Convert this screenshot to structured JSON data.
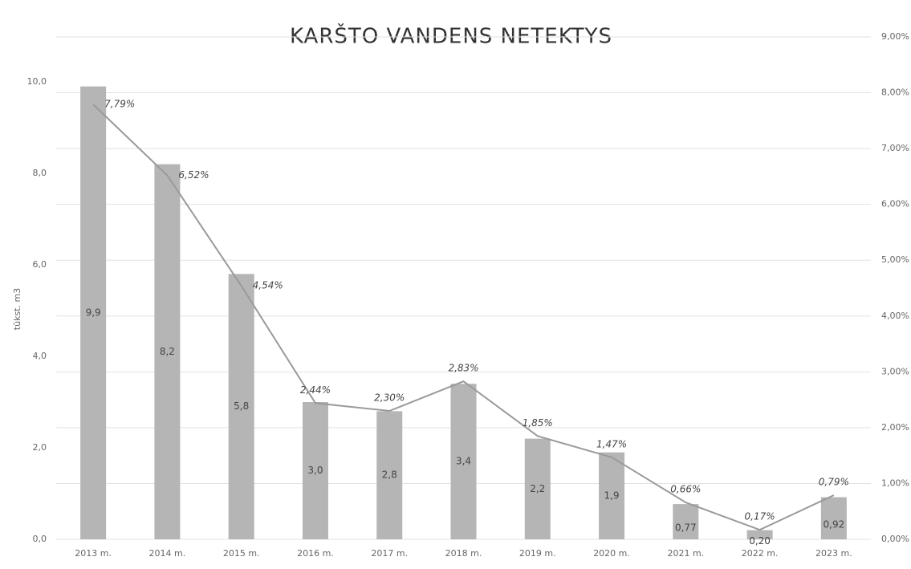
{
  "chart_data": {
    "type": "bar",
    "title": "KARŠTO VANDENS NETEKTYS",
    "y_label": "tūkst. m3",
    "categories": [
      "2013 m.",
      "2014 m.",
      "2015 m.",
      "2016 m.",
      "2017 m.",
      "2018 m.",
      "2019 m.",
      "2020 m.",
      "2021 m.",
      "2022 m.",
      "2023 m."
    ],
    "series": [
      {
        "type": "bar",
        "color": "#b5b5b5",
        "values": [
          9.9,
          8.2,
          5.8,
          3.0,
          2.8,
          3.4,
          2.2,
          1.9,
          0.77,
          0.2,
          0.92
        ],
        "value_labels": [
          "9,9",
          "8,2",
          "5,8",
          "3,0",
          "2,8",
          "3,4",
          "2,2",
          "1,9",
          "0,77",
          "0,20",
          "0,92"
        ]
      },
      {
        "type": "line",
        "axis": "y2",
        "color": "#9a9a9a",
        "values": [
          7.79,
          6.52,
          4.54,
          2.44,
          2.3,
          2.83,
          1.85,
          1.47,
          0.66,
          0.17,
          0.79
        ],
        "value_labels": [
          "7,79%",
          "6,52%",
          "4,54%",
          "2,44%",
          "2,30%",
          "2,83%",
          "1,85%",
          "1,47%",
          "0,66%",
          "0,17%",
          "0,79%"
        ]
      }
    ],
    "ylim": [
      0,
      10
    ],
    "yticks": [
      {
        "value": 0,
        "label": "0,0"
      },
      {
        "value": 2,
        "label": "2,0"
      },
      {
        "value": 4,
        "label": "4,0"
      },
      {
        "value": 6,
        "label": "6,0"
      },
      {
        "value": 8,
        "label": "8,0"
      },
      {
        "value": 10,
        "label": "10,0"
      }
    ],
    "y2lim": [
      0,
      9
    ],
    "y2ticks": [
      {
        "value": 0,
        "label": "0,00%"
      },
      {
        "value": 1,
        "label": "1,00%"
      },
      {
        "value": 2,
        "label": "2,00%"
      },
      {
        "value": 3,
        "label": "3,00%"
      },
      {
        "value": 4,
        "label": "4,00%"
      },
      {
        "value": 5,
        "label": "5,00%"
      },
      {
        "value": 6,
        "label": "6,00%"
      },
      {
        "value": 7,
        "label": "7,00%"
      },
      {
        "value": 8,
        "label": "8,00%"
      },
      {
        "value": 9,
        "label": "9,00%"
      }
    ],
    "grid": true
  }
}
